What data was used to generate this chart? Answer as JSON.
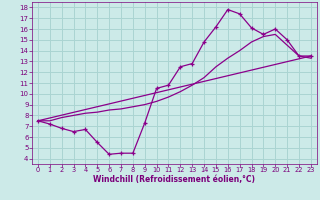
{
  "xlabel": "Windchill (Refroidissement éolien,°C)",
  "xlim": [
    -0.5,
    23.5
  ],
  "ylim": [
    3.5,
    18.5
  ],
  "yticks": [
    4,
    5,
    6,
    7,
    8,
    9,
    10,
    11,
    12,
    13,
    14,
    15,
    16,
    17,
    18
  ],
  "xticks": [
    0,
    1,
    2,
    3,
    4,
    5,
    6,
    7,
    8,
    9,
    10,
    11,
    12,
    13,
    14,
    15,
    16,
    17,
    18,
    19,
    20,
    21,
    22,
    23
  ],
  "bg_color": "#cceae8",
  "grid_color": "#aad4d2",
  "line_color": "#8b008b",
  "tick_color": "#7b007b",
  "line1_x": [
    0,
    1,
    2,
    3,
    4,
    5,
    6,
    7,
    8,
    9,
    10,
    11,
    12,
    13,
    14,
    15,
    16,
    17,
    18,
    19,
    20,
    21,
    22,
    23
  ],
  "line1_y": [
    7.5,
    7.2,
    6.8,
    6.5,
    6.7,
    5.5,
    4.4,
    4.5,
    4.5,
    7.3,
    10.5,
    10.8,
    12.5,
    12.8,
    14.8,
    16.2,
    17.8,
    17.4,
    16.1,
    15.5,
    16.0,
    15.0,
    13.5,
    13.5
  ],
  "line2_x": [
    0,
    1,
    2,
    3,
    4,
    5,
    6,
    7,
    8,
    9,
    10,
    11,
    12,
    13,
    14,
    15,
    16,
    17,
    18,
    19,
    20,
    21,
    22,
    23
  ],
  "line2_y": [
    7.5,
    7.5,
    7.8,
    8.0,
    8.2,
    8.3,
    8.5,
    8.6,
    8.8,
    9.0,
    9.3,
    9.7,
    10.2,
    10.8,
    11.5,
    12.5,
    13.3,
    14.0,
    14.8,
    15.3,
    15.5,
    14.5,
    13.5,
    13.3
  ],
  "line3_x": [
    0,
    23
  ],
  "line3_y": [
    7.5,
    13.5
  ]
}
